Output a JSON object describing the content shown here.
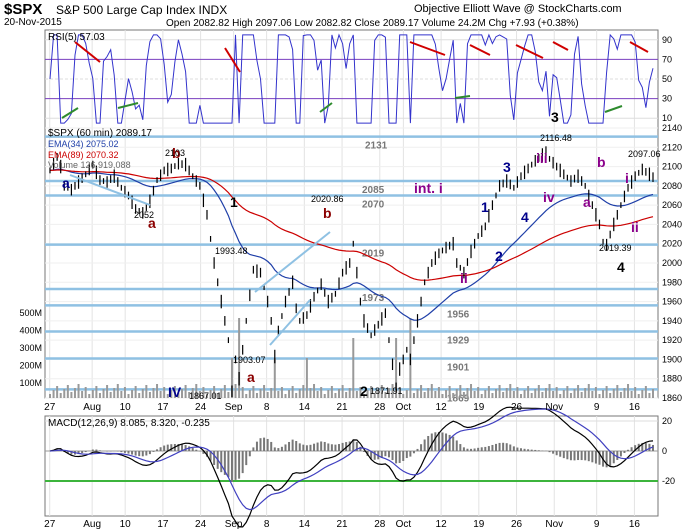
{
  "header": {
    "symbol": "$SPX",
    "name": "S&P 500 Large Cap Index  INDX",
    "date": "20-Nov-2015",
    "ohlc": "Open 2082.82  High 2097.06  Low 2082.82  Close 2089.17  Volume 24.2M  Chg +7.93 (+0.38%)",
    "source": "Objective Elliott Wave @ StockCharts.com"
  },
  "rsi_panel": {
    "legend": "RSI(5) 57.03",
    "levels": [
      "90",
      "70",
      "50",
      "30",
      "10"
    ]
  },
  "price_legend": {
    "title": "$SPX (60 min) 2089.17",
    "ema34": "EMA(34) 2075.02",
    "ema89": "EMA(89) 2070.32",
    "volume": "Volume 126,919,088"
  },
  "macd_panel": {
    "legend": "MACD(12,26,9) 8.085, 8.320, -0.235",
    "levels": [
      "20",
      "0",
      "-20"
    ]
  },
  "colors": {
    "price": "#000000",
    "ema34": "#1f3fa8",
    "ema89": "#cc0000",
    "support": "#8fc1e3",
    "divergence": "#d00000",
    "green_div": "#2e8b2e",
    "rsi": "#3333cc",
    "volume": "#999999"
  },
  "chart_data": {
    "type": "line",
    "x_ticks": [
      "27",
      "Aug",
      "10",
      "17",
      "24",
      "Sep",
      "8",
      "14",
      "21",
      "28",
      "Oct",
      "12",
      "19",
      "26",
      "Nov",
      "9",
      "16"
    ],
    "price_axis": {
      "range": [
        1860,
        2140
      ],
      "ticks": [
        1860,
        1880,
        1900,
        1920,
        1940,
        1960,
        1980,
        2000,
        2020,
        2040,
        2060,
        2080,
        2100,
        2120,
        2140
      ]
    },
    "volume_axis": {
      "ticks": [
        "500M",
        "400M",
        "300M",
        "200M",
        "100M"
      ]
    },
    "price_series": [
      {
        "i": 0,
        "p": 2096
      },
      {
        "i": 2,
        "p": 2110
      },
      {
        "i": 3,
        "p": 2100
      },
      {
        "i": 4,
        "p": 2080
      },
      {
        "i": 6,
        "p": 2076
      },
      {
        "i": 8,
        "p": 2084
      },
      {
        "i": 10,
        "p": 2092
      },
      {
        "i": 12,
        "p": 2102
      },
      {
        "i": 14,
        "p": 2086
      },
      {
        "i": 16,
        "p": 2084
      },
      {
        "i": 18,
        "p": 2090
      },
      {
        "i": 20,
        "p": 2078
      },
      {
        "i": 22,
        "p": 2070
      },
      {
        "i": 24,
        "p": 2056
      },
      {
        "i": 26,
        "p": 2052
      },
      {
        "i": 28,
        "p": 2064
      },
      {
        "i": 30,
        "p": 2086
      },
      {
        "i": 32,
        "p": 2096
      },
      {
        "i": 34,
        "p": 2098
      },
      {
        "i": 36,
        "p": 2103
      },
      {
        "i": 38,
        "p": 2102
      },
      {
        "i": 40,
        "p": 2090
      },
      {
        "i": 42,
        "p": 2080
      },
      {
        "i": 44,
        "p": 2050
      },
      {
        "i": 46,
        "p": 2000
      },
      {
        "i": 48,
        "p": 1960
      },
      {
        "i": 50,
        "p": 1920
      },
      {
        "i": 51,
        "p": 1867
      },
      {
        "i": 52,
        "p": 1900
      },
      {
        "i": 53,
        "p": 1880
      },
      {
        "i": 55,
        "p": 1940
      },
      {
        "i": 57,
        "p": 1993
      },
      {
        "i": 59,
        "p": 1990
      },
      {
        "i": 61,
        "p": 1960
      },
      {
        "i": 62,
        "p": 1940
      },
      {
        "i": 63,
        "p": 1903
      },
      {
        "i": 64,
        "p": 1930
      },
      {
        "i": 66,
        "p": 1960
      },
      {
        "i": 68,
        "p": 1980
      },
      {
        "i": 69,
        "p": 1953
      },
      {
        "i": 70,
        "p": 1940
      },
      {
        "i": 72,
        "p": 1946
      },
      {
        "i": 74,
        "p": 1965
      },
      {
        "i": 76,
        "p": 1978
      },
      {
        "i": 78,
        "p": 1960
      },
      {
        "i": 80,
        "p": 1968
      },
      {
        "i": 82,
        "p": 1990
      },
      {
        "i": 84,
        "p": 2000
      },
      {
        "i": 85,
        "p": 2020
      },
      {
        "i": 86,
        "p": 1990
      },
      {
        "i": 87,
        "p": 1960
      },
      {
        "i": 88,
        "p": 1940
      },
      {
        "i": 90,
        "p": 1925
      },
      {
        "i": 92,
        "p": 1936
      },
      {
        "i": 94,
        "p": 1948
      },
      {
        "i": 95,
        "p": 1920
      },
      {
        "i": 96,
        "p": 1895
      },
      {
        "i": 97,
        "p": 1872
      },
      {
        "i": 98,
        "p": 1890
      },
      {
        "i": 100,
        "p": 1910
      },
      {
        "i": 101,
        "p": 1900
      },
      {
        "i": 103,
        "p": 1940
      },
      {
        "i": 105,
        "p": 1980
      },
      {
        "i": 107,
        "p": 2000
      },
      {
        "i": 109,
        "p": 2010
      },
      {
        "i": 111,
        "p": 2016
      },
      {
        "i": 113,
        "p": 2020
      },
      {
        "i": 114,
        "p": 2000
      },
      {
        "i": 116,
        "p": 1990
      },
      {
        "i": 118,
        "p": 2012
      },
      {
        "i": 120,
        "p": 2028
      },
      {
        "i": 122,
        "p": 2038
      },
      {
        "i": 124,
        "p": 2060
      },
      {
        "i": 126,
        "p": 2080
      },
      {
        "i": 128,
        "p": 2085
      },
      {
        "i": 130,
        "p": 2078
      },
      {
        "i": 132,
        "p": 2090
      },
      {
        "i": 134,
        "p": 2098
      },
      {
        "i": 136,
        "p": 2106
      },
      {
        "i": 138,
        "p": 2112
      },
      {
        "i": 139,
        "p": 2116
      },
      {
        "i": 140,
        "p": 2108
      },
      {
        "i": 142,
        "p": 2100
      },
      {
        "i": 144,
        "p": 2092
      },
      {
        "i": 146,
        "p": 2085
      },
      {
        "i": 148,
        "p": 2090
      },
      {
        "i": 150,
        "p": 2080
      },
      {
        "i": 152,
        "p": 2060
      },
      {
        "i": 154,
        "p": 2040
      },
      {
        "i": 155,
        "p": 2022
      },
      {
        "i": 156,
        "p": 2019
      },
      {
        "i": 158,
        "p": 2040
      },
      {
        "i": 160,
        "p": 2060
      },
      {
        "i": 162,
        "p": 2078
      },
      {
        "i": 164,
        "p": 2090
      },
      {
        "i": 166,
        "p": 2097
      },
      {
        "i": 168,
        "p": 2092
      },
      {
        "i": 169,
        "p": 2089
      }
    ],
    "support_levels": [
      {
        "value": 2131,
        "label": "2131"
      },
      {
        "value": 2085,
        "label": "2085"
      },
      {
        "value": 2070,
        "label": "2070"
      },
      {
        "value": 2019,
        "label": "2019"
      },
      {
        "value": 1973,
        "label": "1973"
      },
      {
        "value": 1956,
        "label": "1956"
      },
      {
        "value": 1929,
        "label": "1929"
      },
      {
        "value": 1901,
        "label": "1901"
      },
      {
        "value": 1869,
        "label": "1869"
      }
    ],
    "price_labels": [
      "2103",
      "2052",
      "1993.48",
      "2020.86",
      "1903.07",
      "1867.01",
      "1871.91",
      "2116.48",
      "2097.06",
      "2019.39"
    ],
    "wave_labels": [
      {
        "text": "a",
        "color": "#00008b"
      },
      {
        "text": "b",
        "color": "#8b0000"
      },
      {
        "text": "a",
        "color": "#8b0000"
      },
      {
        "text": "1",
        "color": "#000000"
      },
      {
        "text": "b",
        "color": "#8b0000"
      },
      {
        "text": "a",
        "color": "#8b0000"
      },
      {
        "text": "IV",
        "color": "#00008b"
      },
      {
        "text": "2",
        "color": "#000000"
      },
      {
        "text": "int. i",
        "color": "#8b008b"
      },
      {
        "text": "ii",
        "color": "#8b008b"
      },
      {
        "text": "1",
        "color": "#00008b"
      },
      {
        "text": "2",
        "color": "#00008b"
      },
      {
        "text": "3",
        "color": "#00008b"
      },
      {
        "text": "iii",
        "color": "#8b008b"
      },
      {
        "text": "4",
        "color": "#00008b"
      },
      {
        "text": "iv",
        "color": "#8b008b"
      },
      {
        "text": "3",
        "color": "#000000"
      },
      {
        "text": "b",
        "color": "#8b008b"
      },
      {
        "text": "a",
        "color": "#8b008b"
      },
      {
        "text": "i",
        "color": "#8b008b"
      },
      {
        "text": "ii",
        "color": "#8b008b"
      },
      {
        "text": "4",
        "color": "#000000"
      }
    ]
  }
}
